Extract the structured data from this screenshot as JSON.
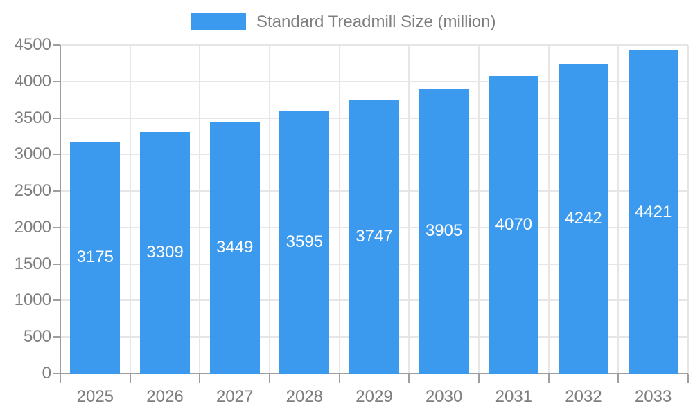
{
  "chart_data": {
    "type": "bar",
    "title": "",
    "legend": "Standard Treadmill Size (million)",
    "legend_position": "top-center",
    "categories": [
      "2025",
      "2026",
      "2027",
      "2028",
      "2029",
      "2030",
      "2031",
      "2032",
      "2033"
    ],
    "values": [
      3175,
      3309,
      3449,
      3595,
      3747,
      3905,
      4070,
      4242,
      4421
    ],
    "value_labels": [
      "3175",
      "3309",
      "3449",
      "3595",
      "3747",
      "3905",
      "4070",
      "4242",
      "4421"
    ],
    "xlabel": "",
    "ylabel": "",
    "ylim": [
      0,
      4500
    ],
    "yticks": [
      0,
      500,
      1000,
      1500,
      2000,
      2500,
      3000,
      3500,
      4000,
      4500
    ],
    "grid": true,
    "colors": {
      "bar": "#3b99ee",
      "bar_label": "#ffffff",
      "grid": "#e6e6e6",
      "axis": "#9e9e9e",
      "tick_text": "#7e7e7e",
      "legend_text": "#7e7e7e",
      "background": "#ffffff"
    }
  }
}
